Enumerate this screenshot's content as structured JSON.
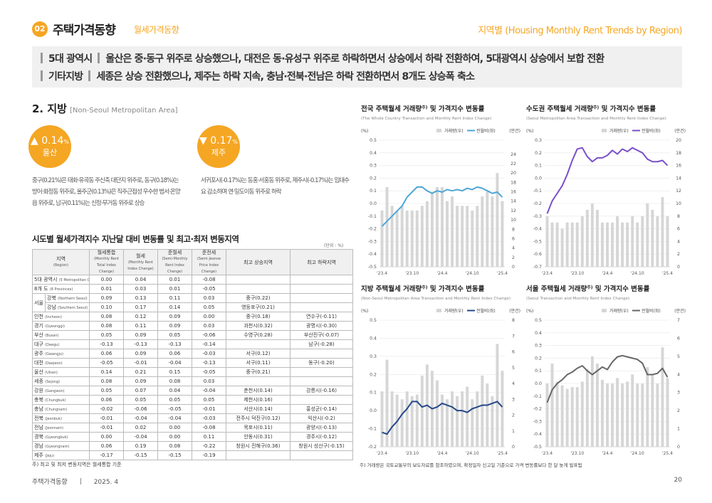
{
  "header": {
    "number": "02",
    "title": "주택가격동향",
    "subtitle": "월세가격동향",
    "section": "지역별 (Housing Monthly Rent Trends by Region)"
  },
  "summary": [
    {
      "label": "5대 광역시",
      "text": "울산은 중·동구 위주로 상승했으나, 대전은 동·유성구 위주로 하락하면서 상승에서 하락 전환하여, 5대광역시 상승에서 보합 전환"
    },
    {
      "label": "기타지방",
      "text": "세종은 상승 전환했으나, 제주는 하락 지속, 충남·전북·전남은 하락 전환하면서 8개도 상승폭 축소"
    }
  ],
  "section": {
    "title": "2. 지방",
    "subtitle": "[Non-Seoul Metropolitan Area]"
  },
  "highlights": [
    {
      "arrow": "▲",
      "value": "0.14",
      "unit": "%",
      "region": "울산",
      "text": "중구(0.21%)은 태화·유곡동 주신축 대단지 위주로, 동구(0.18%)는 방어·화정동 위주로, 울주군(0.13%)은 직주근접성 우수한 범서·온양읍 위주로, 남구(0.11%)는 신정·무거동 위주로 상승"
    },
    {
      "arrow": "▼",
      "value": "0.17",
      "unit": "%",
      "region": "제주",
      "text": "서귀포시(-0.17%)는 동홍·서홍동 위주로, 제주시(-0.17%)는 임대수요 감소하며 연·일도이동 위주로 하락"
    }
  ],
  "table": {
    "title": "시도별 월세가격지수 지난달 대비 변동률 및 최고·최저 변동지역",
    "unit": "(단위 : %)",
    "columns": [
      {
        "ko": "지역",
        "en": "(Region)"
      },
      {
        "ko": "월세통합",
        "en": "(Monthly Rent Total Index Change)"
      },
      {
        "ko": "월세",
        "en": "(Monthly Rent Index Change)"
      },
      {
        "ko": "준월세",
        "en": "(Semi-Monthly Rent Index Change)"
      },
      {
        "ko": "준전세",
        "en": "(Semi-Jeonse Price Index Change)"
      },
      {
        "ko": "최고 상승지역"
      },
      {
        "ko": "최고 하락지역"
      }
    ],
    "rows": [
      {
        "region": "5대 광역시",
        "en": "(5 Metropolitan Cities)",
        "cells": [
          "0.00",
          "0.04",
          "0.01",
          "-0.08",
          null,
          null
        ]
      },
      {
        "region": "8개 도",
        "en": "(8 Provinces)",
        "cells": [
          "0.01",
          "0.03",
          "0.01",
          "-0.05",
          null,
          null
        ]
      },
      {
        "group": "서울",
        "rows": [
          {
            "region": "강북",
            "en": "(Northern Seoul)",
            "cells": [
              "0.09",
              "0.13",
              "0.11",
              "0.03",
              "중구(0.22)",
              null
            ]
          },
          {
            "region": "강남",
            "en": "(Southern Seoul)",
            "cells": [
              "0.10",
              "0.17",
              "0.14",
              "0.05",
              "영등포구(0.21)",
              null
            ]
          }
        ]
      },
      {
        "region": "인천",
        "en": "(Incheon)",
        "cells": [
          "0.08",
          "0.12",
          "0.09",
          "0.00",
          "중구(0.18)",
          "연수구(-0.11)"
        ]
      },
      {
        "region": "경기",
        "en": "(Gyeonggi)",
        "cells": [
          "0.08",
          "0.11",
          "0.09",
          "0.03",
          "과천시(0.32)",
          "광명시(-0.30)"
        ]
      },
      {
        "region": "부산",
        "en": "(Busan)",
        "cells": [
          "0.05",
          "0.09",
          "0.05",
          "-0.06",
          "수영구(0.28)",
          "부산진구(-0.07)"
        ]
      },
      {
        "region": "대구",
        "en": "(Daegu)",
        "cells": [
          "-0.13",
          "-0.13",
          "-0.13",
          "-0.14",
          null,
          "남구(-0.28)"
        ]
      },
      {
        "region": "광주",
        "en": "(Gwangju)",
        "cells": [
          "0.06",
          "0.09",
          "0.06",
          "-0.03",
          "서구(0.12)",
          null
        ]
      },
      {
        "region": "대전",
        "en": "(Daejeon)",
        "cells": [
          "-0.05",
          "-0.01",
          "-0.04",
          "-0.13",
          "서구(0.11)",
          "동구(-0.20)"
        ]
      },
      {
        "region": "울산",
        "en": "(Ulsan)",
        "cells": [
          "0.14",
          "0.21",
          "0.15",
          "-0.05",
          "중구(0.21)",
          null
        ]
      },
      {
        "region": "세종",
        "en": "(Sejong)",
        "cells": [
          "0.08",
          "0.09",
          "0.08",
          "0.03",
          null,
          null
        ]
      },
      {
        "region": "강원",
        "en": "(Gangwon)",
        "cells": [
          "0.05",
          "0.07",
          "0.04",
          "-0.04",
          "춘천시(0.14)",
          "강릉시(-0.16)"
        ]
      },
      {
        "region": "충북",
        "en": "(Chungbuk)",
        "cells": [
          "0.06",
          "0.05",
          "0.05",
          "0.05",
          "제천시(0.16)",
          null
        ]
      },
      {
        "region": "충남",
        "en": "(Chungnam)",
        "cells": [
          "-0.02",
          "-0.06",
          "-0.05",
          "-0.01",
          "서산시(0.14)",
          "홍성군(-0.14)"
        ]
      },
      {
        "region": "전북",
        "en": "(Jeonbuk)",
        "cells": [
          "-0.01",
          "-0.04",
          "-0.04",
          "-0.03",
          "전주시 덕진구(0.12)",
          "익산시(-0.2)"
        ]
      },
      {
        "region": "전남",
        "en": "(Jeonnam)",
        "cells": [
          "-0.01",
          "0.02",
          "0.00",
          "-0.08",
          "목포시(0.11)",
          "광양시(-0.13)"
        ]
      },
      {
        "region": "경북",
        "en": "(Gyeongbuk)",
        "cells": [
          "0.00",
          "-0.04",
          "0.00",
          "0.11",
          "안동시(0.31)",
          "경주시(-0.12)"
        ]
      },
      {
        "region": "경남",
        "en": "(Gyeongnam)",
        "cells": [
          "0.06",
          "0.19",
          "0.08",
          "-0.22",
          "창원시 진해구(0.36)",
          "창원시 성산구(-0.15)"
        ]
      },
      {
        "region": "제주",
        "en": "(Jeju)",
        "cells": [
          "-0.17",
          "-0.15",
          "-0.15",
          "-0.19",
          null,
          null
        ]
      }
    ],
    "note": "주) 최고 및 최저 변동지역은 월세통합 기준"
  },
  "chart_note": "주) 거래량은 국토교통부의 보도자료를 참조하였으며, 확정일자 신고일 기준으로 가격 변동률보다 한 달 늦게 발표됨",
  "footer": {
    "title": "주택가격동향",
    "date": "2025. 4",
    "page": "20"
  },
  "chart_data": [
    {
      "type": "bar-line",
      "title": "전국 주택월세 거래량",
      "title_note": "주)",
      "title_suffix": " 및 가격지수 변동률",
      "subtitle": "(The Whole Country Transaction and Monthly Rent Index Change)",
      "ylabel": "(%)",
      "y2label": "(만건)",
      "categories": [
        "'23.4",
        null,
        null,
        null,
        null,
        null,
        "'23.10",
        null,
        null,
        null,
        null,
        null,
        "'24.4",
        null,
        null,
        null,
        null,
        null,
        "'24.10",
        null,
        null,
        null,
        null,
        null,
        "'25.4"
      ],
      "ylim": [
        -0.5,
        0.5
      ],
      "yticks": [
        -0.5,
        -0.4,
        -0.3,
        -0.2,
        -0.1,
        {
          "value": 0,
          "label": "0.0"
        },
        0.1,
        0.2,
        0.3,
        0.4,
        0.5
      ],
      "y2lim": [
        0,
        27
      ],
      "y2ticks": [
        0,
        2,
        4,
        6,
        8,
        10,
        12,
        14,
        16,
        18,
        20,
        22,
        24
      ],
      "grid": true,
      "series": [
        {
          "name": "거래량(우)",
          "type": "bar",
          "axis": "y2",
          "color": "#d6d6d6",
          "values": [
            12,
            17,
            13,
            12,
            13,
            12,
            12,
            12,
            13,
            14,
            16,
            17,
            17,
            14,
            15,
            13,
            13,
            13,
            12,
            13,
            15,
            16,
            15,
            20,
            14
          ]
        },
        {
          "name": "전월비(좌)",
          "type": "line",
          "color": "#4ea6d6",
          "values": [
            -0.18,
            -0.14,
            -0.1,
            -0.06,
            -0.02,
            0.05,
            0.09,
            0.13,
            0.13,
            0.1,
            0.08,
            0.1,
            0.09,
            0.11,
            0.1,
            0.11,
            0.1,
            0.12,
            0.11,
            0.13,
            0.12,
            0.1,
            0.08,
            0.09,
            0.05
          ]
        }
      ]
    },
    {
      "type": "bar-line",
      "title": "수도권 주택월세 거래량",
      "title_note": "주)",
      "title_suffix": " 및 가격지수 변동률",
      "subtitle": "(Seoul Metropolitan Area Transaction and Monthly Rent Index Change)",
      "ylabel": "(%)",
      "y2label": "(만건)",
      "categories": [
        "'23.4",
        null,
        null,
        null,
        null,
        null,
        "'23.10",
        null,
        null,
        null,
        null,
        null,
        "'24.4",
        null,
        null,
        null,
        null,
        null,
        "'24.10",
        null,
        null,
        null,
        null,
        null,
        "'25.4"
      ],
      "ylim": [
        -0.7,
        0.3
      ],
      "yticks": [
        -0.7,
        -0.6,
        -0.5,
        -0.4,
        -0.3,
        -0.2,
        -0.1,
        {
          "value": 0,
          "label": "0.0"
        },
        0.1,
        0.2,
        0.3
      ],
      "y2lim": [
        0,
        20
      ],
      "y2ticks": [
        0,
        2,
        4,
        6,
        8,
        10,
        12,
        14,
        16,
        18,
        20
      ],
      "grid": true,
      "series": [
        {
          "name": "거래량(우)",
          "type": "bar",
          "axis": "y2",
          "color": "#d6d6d6",
          "values": [
            8,
            7,
            7,
            6,
            7,
            7,
            7,
            8,
            9,
            10,
            9,
            7,
            7,
            7,
            8,
            7,
            7,
            8,
            7,
            8,
            10,
            9,
            8,
            11,
            8
          ]
        },
        {
          "name": "전월비(좌)",
          "type": "line",
          "color": "#7a4fc9",
          "values": [
            -0.28,
            -0.18,
            -0.12,
            -0.06,
            0.03,
            0.14,
            0.23,
            0.24,
            0.17,
            0.13,
            0.16,
            0.16,
            0.18,
            0.22,
            0.19,
            0.23,
            0.21,
            0.24,
            0.22,
            0.2,
            0.15,
            0.13,
            0.13,
            0.14,
            0.1
          ]
        }
      ]
    },
    {
      "type": "bar-line",
      "title": "지방 주택월세 거래량",
      "title_note": "주)",
      "title_suffix": " 및 가격지수 변동률",
      "subtitle": "(Non-Seoul Metropolitan Area Transaction and Monthly Rent Index Change)",
      "ylabel": "(%)",
      "y2label": "(만건)",
      "categories": [
        "'23.4",
        null,
        null,
        null,
        null,
        null,
        "'23.10",
        null,
        null,
        null,
        null,
        null,
        "'24.4",
        null,
        null,
        null,
        null,
        null,
        "'24.10",
        null,
        null,
        null,
        null,
        null,
        "'25.4"
      ],
      "ylim": [
        -0.2,
        0.5
      ],
      "yticks": [
        -0.2,
        -0.1,
        {
          "value": 0,
          "label": "0.0"
        },
        0.1,
        0.2,
        0.3,
        0.4,
        0.5
      ],
      "y2lim": [
        0,
        8
      ],
      "y2ticks": [
        0,
        1,
        2,
        3,
        4,
        5,
        6,
        7,
        8
      ],
      "grid": true,
      "series": [
        {
          "name": "거래량(우)",
          "type": "bar",
          "axis": "y2",
          "color": "#d6d6d6",
          "values": [
            3.5,
            5.5,
            3.5,
            3.3,
            3,
            3.5,
            3.2,
            3.3,
            4.5,
            5.2,
            4.8,
            4.2,
            3.3,
            3,
            3.5,
            3.2,
            3.5,
            3.8,
            3,
            3.5,
            4.5,
            4,
            3.2,
            6.5,
            4.8
          ]
        },
        {
          "name": "전월비(좌)",
          "type": "line",
          "color": "#24488a",
          "values": [
            -0.12,
            -0.13,
            -0.09,
            -0.06,
            -0.02,
            0.01,
            0.05,
            0.05,
            0.02,
            0.03,
            0.01,
            0.02,
            0.04,
            0.03,
            0.02,
            0.0,
            0.0,
            -0.01,
            0.01,
            0.02,
            0.03,
            0.03,
            0.04,
            0.05,
            0.02
          ]
        }
      ]
    },
    {
      "type": "bar-line",
      "title": "서울 주택월세 거래량",
      "title_note": "주)",
      "title_suffix": " 및 가격지수 변동률",
      "subtitle": "(Seoul Transaction and Monthly Rent Index Change)",
      "ylabel": "(%)",
      "y2label": "(만건)",
      "categories": [
        "'23.4",
        null,
        null,
        null,
        null,
        null,
        "'23.10",
        null,
        null,
        null,
        null,
        null,
        "'24.4",
        null,
        null,
        null,
        null,
        null,
        "'24.10",
        null,
        null,
        null,
        null,
        null,
        "'25.4"
      ],
      "ylim": [
        -0.5,
        0.5
      ],
      "yticks": [
        -0.5,
        -0.4,
        -0.3,
        -0.2,
        -0.1,
        {
          "value": 0,
          "label": "0.0"
        },
        0.1,
        0.2,
        0.3,
        0.4,
        0.5
      ],
      "y2lim": [
        0,
        7
      ],
      "y2ticks": [
        0,
        1,
        2,
        3,
        4,
        5,
        6,
        7
      ],
      "grid": true,
      "series": [
        {
          "name": "거래량(우)",
          "type": "bar",
          "axis": "y2",
          "color": "#d6d6d6",
          "values": [
            3.5,
            4.6,
            3.6,
            3.4,
            3.2,
            3.3,
            3.3,
            3.6,
            4.3,
            5,
            4.6,
            3.7,
            3.5,
            3.5,
            3.8,
            3.5,
            3.6,
            4,
            3.5,
            3.5,
            4.4,
            4,
            3.5,
            5.5,
            3.8
          ]
        },
        {
          "name": "전월비(좌)",
          "type": "line",
          "color": "#666666",
          "values": [
            -0.15,
            -0.05,
            0.0,
            0.03,
            0.07,
            0.09,
            0.12,
            0.14,
            0.1,
            0.07,
            0.1,
            0.13,
            0.11,
            0.17,
            0.21,
            0.22,
            0.21,
            0.2,
            0.19,
            0.16,
            0.07,
            0.07,
            0.08,
            0.12,
            0.05
          ]
        }
      ]
    }
  ]
}
